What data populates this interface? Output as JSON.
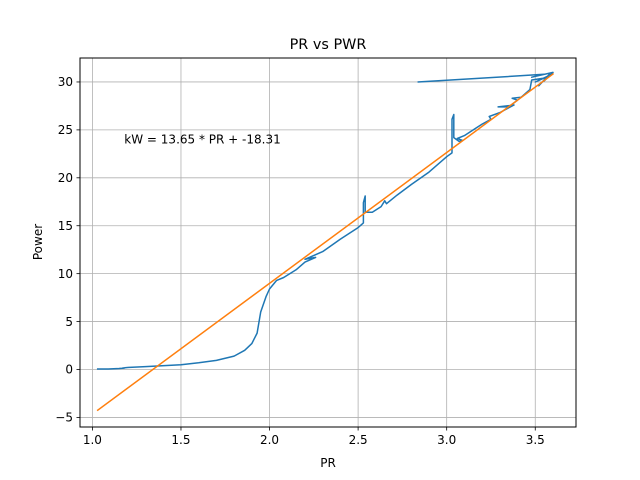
{
  "chart_data": {
    "type": "line",
    "title": "PR vs PWR",
    "xlabel": "PR",
    "ylabel": "Power",
    "xlim": [
      0.93,
      3.73
    ],
    "ylim": [
      -6.0,
      32.5
    ],
    "grid": true,
    "x_ticks": [
      1.0,
      1.5,
      2.0,
      2.5,
      3.0,
      3.5
    ],
    "x_tick_labels": [
      "1.0",
      "1.5",
      "2.0",
      "2.5",
      "3.0",
      "3.5"
    ],
    "y_ticks": [
      -5,
      0,
      5,
      10,
      15,
      20,
      25,
      30
    ],
    "y_tick_labels": [
      "−5",
      "0",
      "5",
      "10",
      "15",
      "20",
      "25",
      "30"
    ],
    "annotation": {
      "text": "kW = 13.65 * PR + -18.31",
      "x": 1.18,
      "y": 24.0
    },
    "series": [
      {
        "color": "#1f77b4",
        "points": [
          [
            1.03,
            0.05
          ],
          [
            1.09,
            0.05
          ],
          [
            1.15,
            0.1
          ],
          [
            1.18,
            0.15
          ],
          [
            1.17,
            0.15
          ],
          [
            1.19,
            0.2
          ],
          [
            1.3,
            0.3
          ],
          [
            1.5,
            0.5
          ],
          [
            1.6,
            0.7
          ],
          [
            1.7,
            0.95
          ],
          [
            1.8,
            1.4
          ],
          [
            1.86,
            2.0
          ],
          [
            1.9,
            2.7
          ],
          [
            1.93,
            3.8
          ],
          [
            1.95,
            6.0
          ],
          [
            1.98,
            7.6
          ],
          [
            2.0,
            8.4
          ],
          [
            2.04,
            9.3
          ],
          [
            2.08,
            9.6
          ],
          [
            2.15,
            10.4
          ],
          [
            2.2,
            11.2
          ],
          [
            2.26,
            11.7
          ],
          [
            2.2,
            11.5
          ],
          [
            2.3,
            12.3
          ],
          [
            2.4,
            13.6
          ],
          [
            2.5,
            14.8
          ],
          [
            2.53,
            15.3
          ],
          [
            2.53,
            17.4
          ],
          [
            2.54,
            18.1
          ],
          [
            2.54,
            16.4
          ],
          [
            2.58,
            16.4
          ],
          [
            2.63,
            17.0
          ],
          [
            2.65,
            17.6
          ],
          [
            2.66,
            17.3
          ],
          [
            2.72,
            18.2
          ],
          [
            2.8,
            19.3
          ],
          [
            2.9,
            20.6
          ],
          [
            3.0,
            22.2
          ],
          [
            3.03,
            22.6
          ],
          [
            3.03,
            26.1
          ],
          [
            3.04,
            26.6
          ],
          [
            3.04,
            24.2
          ],
          [
            3.07,
            23.8
          ],
          [
            3.09,
            23.9
          ],
          [
            3.06,
            24.1
          ],
          [
            3.1,
            24.4
          ],
          [
            3.2,
            25.6
          ],
          [
            3.25,
            26.1
          ],
          [
            3.24,
            26.4
          ],
          [
            3.3,
            26.8
          ],
          [
            3.38,
            27.6
          ],
          [
            3.29,
            27.4
          ],
          [
            3.35,
            27.4
          ],
          [
            3.4,
            28.1
          ],
          [
            3.37,
            28.3
          ],
          [
            3.42,
            28.4
          ],
          [
            3.47,
            29.2
          ],
          [
            3.48,
            30.2
          ],
          [
            3.55,
            30.4
          ],
          [
            3.5,
            30.0
          ],
          [
            3.57,
            30.6
          ],
          [
            3.52,
            29.6
          ],
          [
            3.58,
            30.8
          ],
          [
            3.55,
            30.1
          ],
          [
            3.6,
            31.0
          ],
          [
            3.48,
            30.5
          ],
          [
            3.55,
            30.8
          ],
          [
            2.84,
            30.0
          ]
        ]
      },
      {
        "color": "#ff7f0e",
        "points": [
          [
            1.03,
            -4.25
          ],
          [
            3.6,
            30.83
          ]
        ]
      }
    ]
  }
}
